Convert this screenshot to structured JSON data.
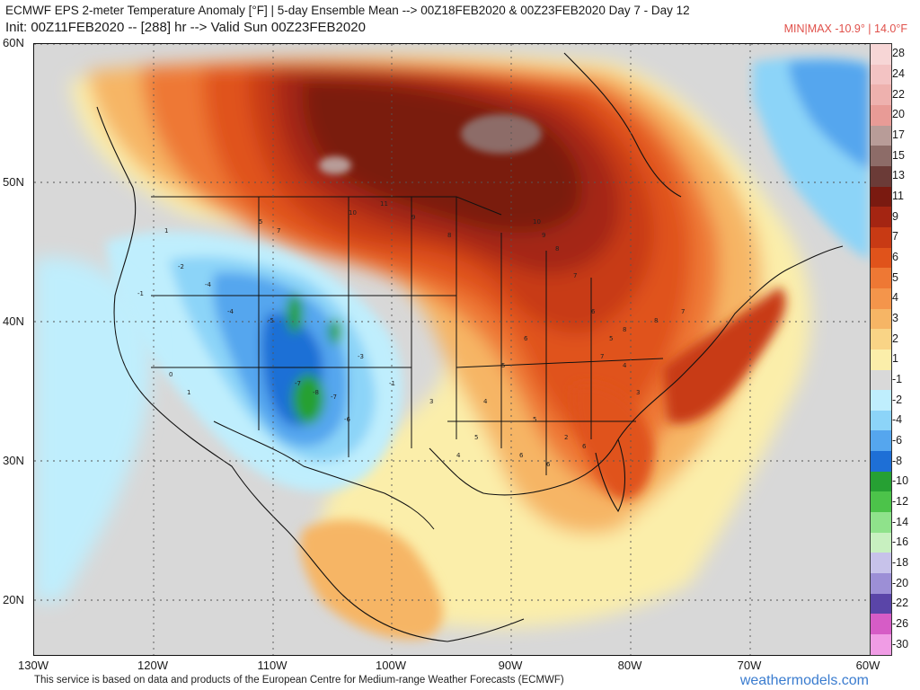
{
  "header": {
    "line1": "ECMWF EPS 2-meter Temperature Anomaly [°F] | 5-day Ensemble Mean --> 00Z18FEB2020 & 00Z23FEB2020   Day 7 - Day 12",
    "line2": "Init: 00Z11FEB2020 -- [288] hr --> Valid Sun 00Z23FEB2020",
    "minmax": "MIN|MAX -10.9° | 14.0°F"
  },
  "axes": {
    "lat_labels": [
      "60N",
      "50N",
      "40N",
      "30N",
      "20N"
    ],
    "lon_labels": [
      "130W",
      "120W",
      "110W",
      "100W",
      "90W",
      "80W",
      "70W",
      "60W"
    ]
  },
  "legend": {
    "unit": "°F",
    "levels": [
      "28",
      "24",
      "22",
      "20",
      "17",
      "15",
      "13",
      "11",
      "9",
      "7",
      "6",
      "5",
      "4",
      "3",
      "2",
      "1",
      "-1",
      "-2",
      "-4",
      "-6",
      "-8",
      "-10",
      "-12",
      "-14",
      "-16",
      "-18",
      "-20",
      "-22",
      "-26",
      "-30"
    ],
    "colors": [
      "#f7d6d6",
      "#f3c3c3",
      "#eeb1ae",
      "#e89b96",
      "#b89c98",
      "#8d6c68",
      "#6b3b37",
      "#7a1a10",
      "#a42512",
      "#c83a14",
      "#e0531b",
      "#ee7834",
      "#f4954b",
      "#f6b565",
      "#f9d486",
      "#fbeeaa",
      "#d9d9d9",
      "#bfeefd",
      "#8cd4f8",
      "#55a6ee",
      "#1e6fd6",
      "#26a033",
      "#4cc34a",
      "#8fe28b",
      "#c8f0c0",
      "#c7c2ea",
      "#9c8fd6",
      "#5a45a8",
      "#d65cc6",
      "#f09ce5"
    ]
  },
  "map": {
    "value_labels": [
      "1",
      "-1",
      "-2",
      "-4",
      "-4",
      "-5",
      "-7",
      "-8",
      "-7",
      "-6",
      "-3",
      "-1",
      "5",
      "7",
      "10",
      "11",
      "9",
      "8",
      "10",
      "9",
      "8",
      "7",
      "6",
      "5",
      "4",
      "3",
      "2",
      "6",
      "7",
      "8",
      "8",
      "7",
      "6",
      "5",
      "4",
      "5",
      "6",
      "6",
      "5",
      "4",
      "3",
      "1",
      "0"
    ]
  },
  "footer": {
    "credit": "This service is based on data and products of the European Centre for Medium-range Weather Forecasts (ECMWF)",
    "brand": "weathermodels.com"
  }
}
